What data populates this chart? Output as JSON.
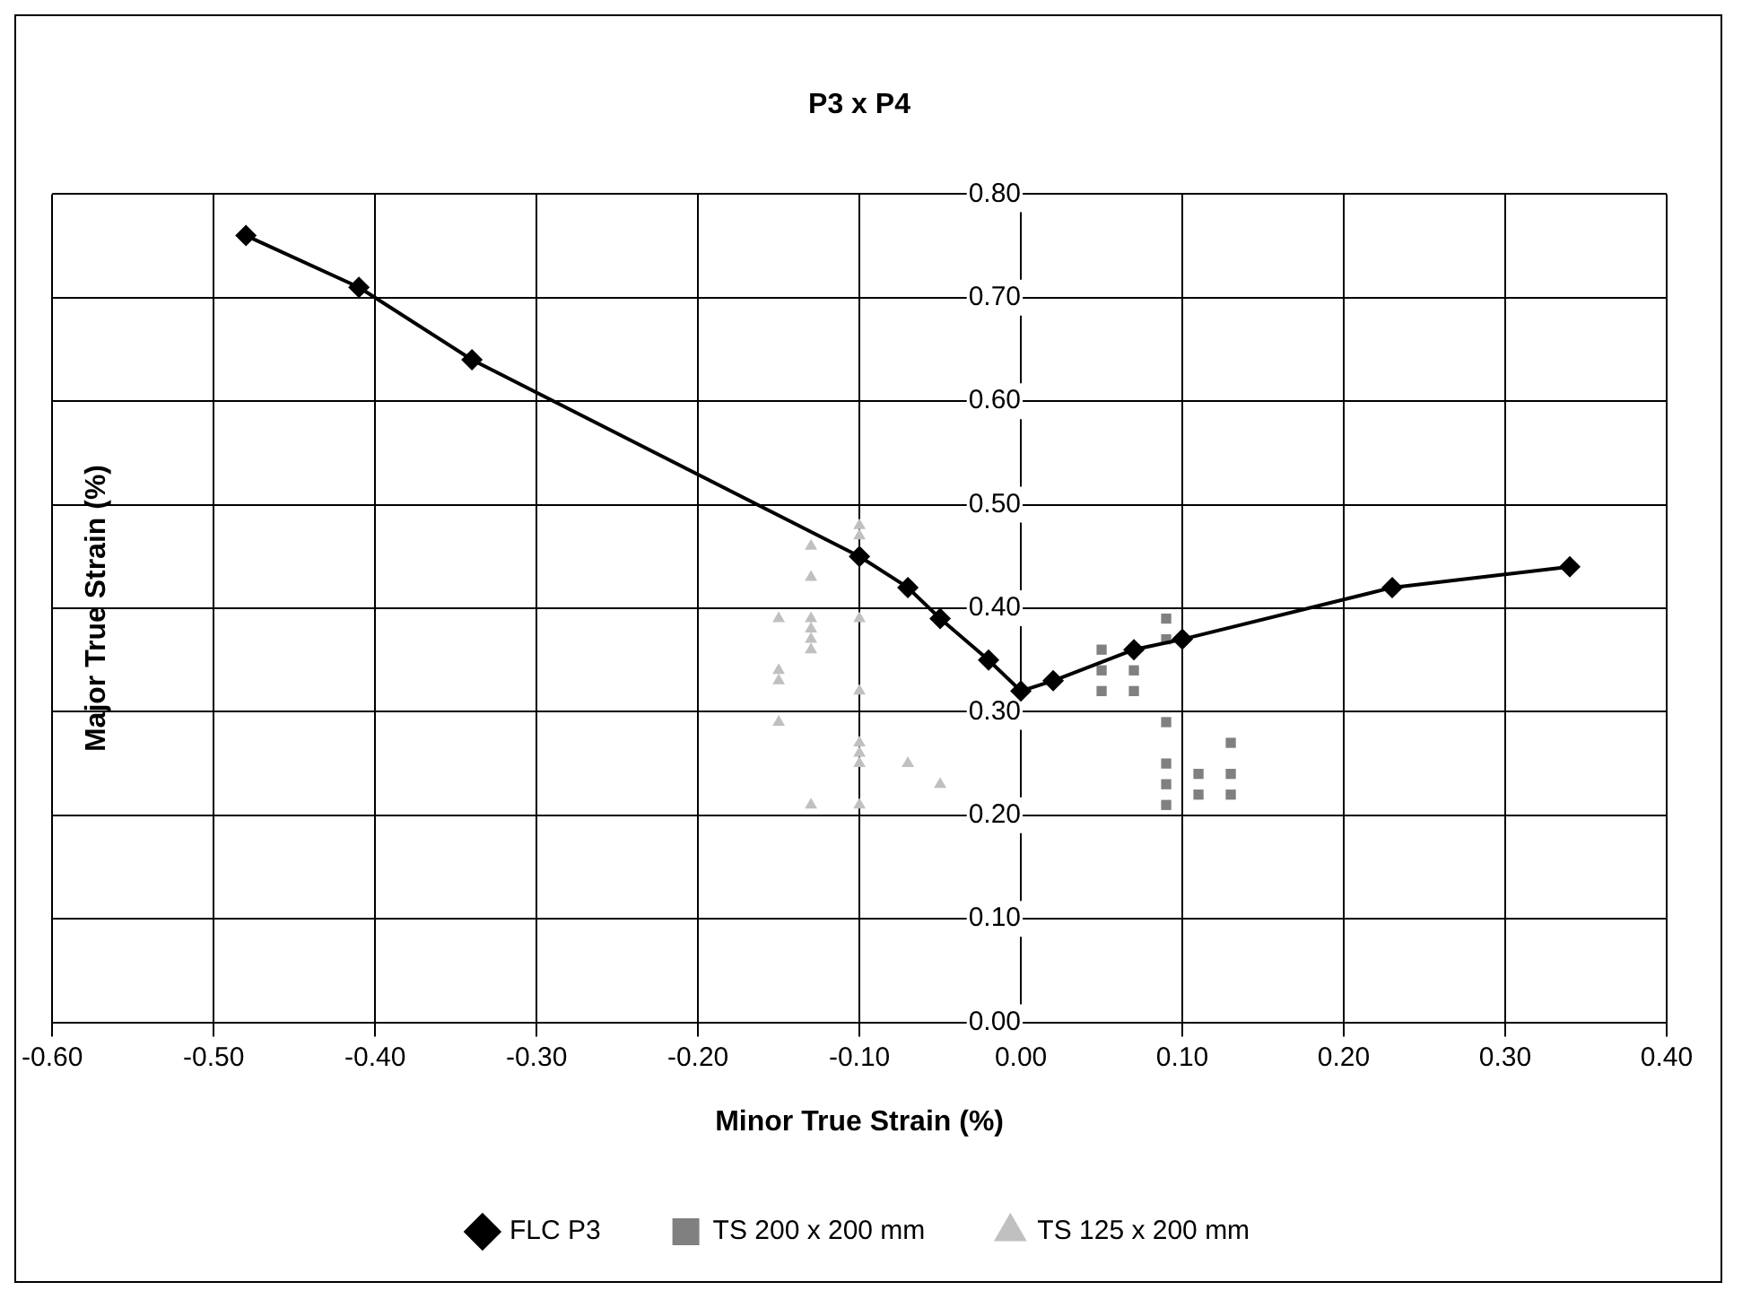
{
  "chart_data": {
    "type": "scatter",
    "title": "P3 x P4",
    "xlabel": "Minor True Strain (%)",
    "ylabel": "Major True Strain (%)",
    "xlim": [
      -0.6,
      0.4
    ],
    "ylim": [
      0,
      0.8
    ],
    "xticks": [
      {
        "value": -0.6,
        "label": "-0.60"
      },
      {
        "value": -0.5,
        "label": "-0.50"
      },
      {
        "value": -0.4,
        "label": "-0.40"
      },
      {
        "value": -0.3,
        "label": "-0.30"
      },
      {
        "value": -0.2,
        "label": "-0.20"
      },
      {
        "value": -0.1,
        "label": "-0.10"
      },
      {
        "value": 0,
        "label": "0.00"
      },
      {
        "value": 0.1,
        "label": "0.10"
      },
      {
        "value": 0.2,
        "label": "0.20"
      },
      {
        "value": 0.3,
        "label": "0.30"
      },
      {
        "value": 0.4,
        "label": "0.40"
      }
    ],
    "yticks": [
      {
        "value": 0,
        "label": "0.00"
      },
      {
        "value": 0.1,
        "label": "0.10"
      },
      {
        "value": 0.2,
        "label": "0.20"
      },
      {
        "value": 0.3,
        "label": "0.30"
      },
      {
        "value": 0.4,
        "label": "0.40"
      },
      {
        "value": 0.5,
        "label": "0.50"
      },
      {
        "value": 0.6,
        "label": "0.60"
      },
      {
        "value": 0.7,
        "label": "0.70"
      },
      {
        "value": 0.8,
        "label": "0.80"
      }
    ],
    "grid": true,
    "legend": "bottom",
    "series": [
      {
        "name": "FLC P3",
        "type": "line",
        "marker": "diamond",
        "color": "#000000",
        "x": [
          -0.48,
          -0.41,
          -0.34,
          -0.1,
          -0.07,
          -0.05,
          -0.02,
          0,
          0.02,
          0.07,
          0.1,
          0.23,
          0.34
        ],
        "values": [
          0.76,
          0.71,
          0.64,
          0.45,
          0.42,
          0.39,
          0.35,
          0.32,
          0.33,
          0.36,
          0.37,
          0.42,
          0.44
        ]
      },
      {
        "name": "TS 200 x 200 mm",
        "type": "scatter",
        "marker": "square",
        "color": "#808080",
        "x": [
          0.05,
          0.05,
          0.05,
          0.07,
          0.07,
          0.09,
          0.09,
          0.09,
          0.09,
          0.09,
          0.09,
          0.11,
          0.11,
          0.13,
          0.13,
          0.13
        ],
        "values": [
          0.32,
          0.34,
          0.36,
          0.32,
          0.34,
          0.37,
          0.39,
          0.29,
          0.21,
          0.23,
          0.25,
          0.22,
          0.24,
          0.22,
          0.24,
          0.27
        ]
      },
      {
        "name": "TS 125 x 200 mm",
        "type": "scatter",
        "marker": "triangle",
        "color": "#c0c0c0",
        "x": [
          -0.15,
          -0.15,
          -0.15,
          -0.15,
          -0.13,
          -0.13,
          -0.13,
          -0.13,
          -0.13,
          -0.13,
          -0.13,
          -0.1,
          -0.1,
          -0.1,
          -0.1,
          -0.1,
          -0.1,
          -0.1,
          -0.1,
          -0.07,
          -0.05
        ],
        "values": [
          0.39,
          0.34,
          0.33,
          0.29,
          0.46,
          0.43,
          0.39,
          0.38,
          0.37,
          0.36,
          0.21,
          0.48,
          0.47,
          0.39,
          0.32,
          0.27,
          0.26,
          0.25,
          0.21,
          0.25,
          0.23
        ]
      }
    ]
  }
}
